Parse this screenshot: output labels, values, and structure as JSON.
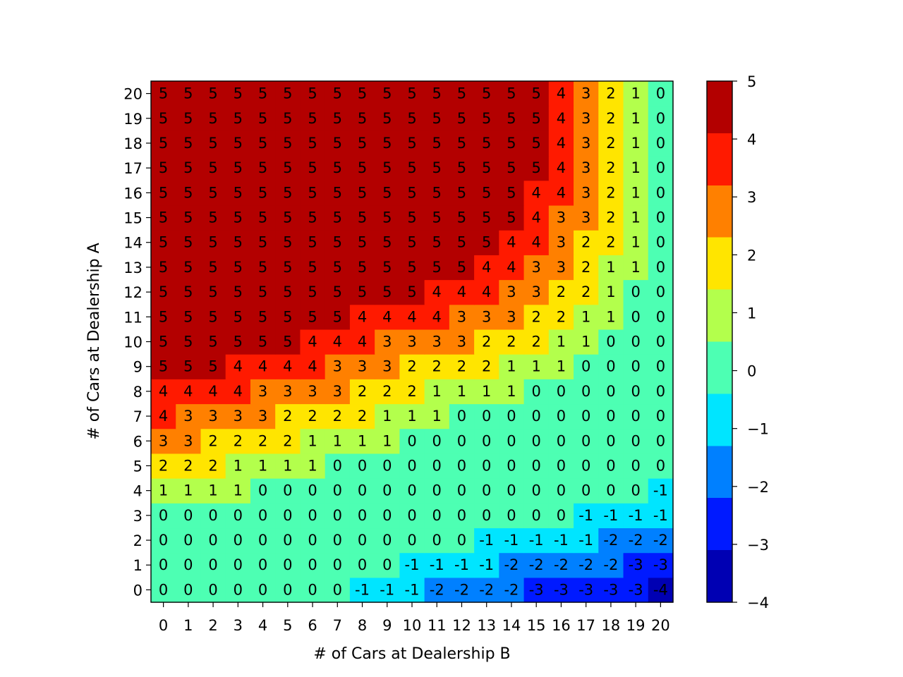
{
  "chart_data": {
    "type": "heatmap",
    "title": "",
    "xlabel": "# of Cars at Dealership B",
    "ylabel": "# of Cars at Dealership A",
    "x_categories": [
      "0",
      "1",
      "2",
      "3",
      "4",
      "5",
      "6",
      "7",
      "8",
      "9",
      "10",
      "11",
      "12",
      "13",
      "14",
      "15",
      "16",
      "17",
      "18",
      "19",
      "20"
    ],
    "y_categories": [
      "0",
      "1",
      "2",
      "3",
      "4",
      "5",
      "6",
      "7",
      "8",
      "9",
      "10",
      "11",
      "12",
      "13",
      "14",
      "15",
      "16",
      "17",
      "18",
      "19",
      "20"
    ],
    "values": [
      [
        0,
        0,
        0,
        0,
        0,
        0,
        0,
        0,
        -1,
        -1,
        -1,
        -2,
        -2,
        -2,
        -2,
        -3,
        -3,
        -3,
        -3,
        -3,
        -4
      ],
      [
        0,
        0,
        0,
        0,
        0,
        0,
        0,
        0,
        0,
        0,
        -1,
        -1,
        -1,
        -1,
        -2,
        -2,
        -2,
        -2,
        -2,
        -3,
        -3
      ],
      [
        0,
        0,
        0,
        0,
        0,
        0,
        0,
        0,
        0,
        0,
        0,
        0,
        0,
        -1,
        -1,
        -1,
        -1,
        -1,
        -2,
        -2,
        -2
      ],
      [
        0,
        0,
        0,
        0,
        0,
        0,
        0,
        0,
        0,
        0,
        0,
        0,
        0,
        0,
        0,
        0,
        0,
        -1,
        -1,
        -1,
        -1
      ],
      [
        1,
        1,
        1,
        1,
        0,
        0,
        0,
        0,
        0,
        0,
        0,
        0,
        0,
        0,
        0,
        0,
        0,
        0,
        0,
        0,
        -1
      ],
      [
        2,
        2,
        2,
        1,
        1,
        1,
        1,
        0,
        0,
        0,
        0,
        0,
        0,
        0,
        0,
        0,
        0,
        0,
        0,
        0,
        0
      ],
      [
        3,
        3,
        2,
        2,
        2,
        2,
        1,
        1,
        1,
        1,
        0,
        0,
        0,
        0,
        0,
        0,
        0,
        0,
        0,
        0,
        0
      ],
      [
        4,
        3,
        3,
        3,
        3,
        2,
        2,
        2,
        2,
        1,
        1,
        1,
        0,
        0,
        0,
        0,
        0,
        0,
        0,
        0,
        0
      ],
      [
        4,
        4,
        4,
        4,
        3,
        3,
        3,
        3,
        2,
        2,
        2,
        1,
        1,
        1,
        1,
        0,
        0,
        0,
        0,
        0,
        0
      ],
      [
        5,
        5,
        5,
        4,
        4,
        4,
        4,
        3,
        3,
        3,
        2,
        2,
        2,
        2,
        1,
        1,
        1,
        0,
        0,
        0,
        0
      ],
      [
        5,
        5,
        5,
        5,
        5,
        5,
        4,
        4,
        4,
        3,
        3,
        3,
        3,
        2,
        2,
        2,
        1,
        1,
        0,
        0,
        0
      ],
      [
        5,
        5,
        5,
        5,
        5,
        5,
        5,
        5,
        4,
        4,
        4,
        4,
        3,
        3,
        3,
        2,
        2,
        1,
        1,
        0,
        0
      ],
      [
        5,
        5,
        5,
        5,
        5,
        5,
        5,
        5,
        5,
        5,
        5,
        4,
        4,
        4,
        3,
        3,
        2,
        2,
        1,
        0,
        0
      ],
      [
        5,
        5,
        5,
        5,
        5,
        5,
        5,
        5,
        5,
        5,
        5,
        5,
        5,
        4,
        4,
        3,
        3,
        2,
        1,
        1,
        0
      ],
      [
        5,
        5,
        5,
        5,
        5,
        5,
        5,
        5,
        5,
        5,
        5,
        5,
        5,
        5,
        4,
        4,
        3,
        2,
        2,
        1,
        0
      ],
      [
        5,
        5,
        5,
        5,
        5,
        5,
        5,
        5,
        5,
        5,
        5,
        5,
        5,
        5,
        5,
        4,
        3,
        3,
        2,
        1,
        0
      ],
      [
        5,
        5,
        5,
        5,
        5,
        5,
        5,
        5,
        5,
        5,
        5,
        5,
        5,
        5,
        5,
        4,
        4,
        3,
        2,
        1,
        0
      ],
      [
        5,
        5,
        5,
        5,
        5,
        5,
        5,
        5,
        5,
        5,
        5,
        5,
        5,
        5,
        5,
        5,
        4,
        3,
        2,
        1,
        0
      ],
      [
        5,
        5,
        5,
        5,
        5,
        5,
        5,
        5,
        5,
        5,
        5,
        5,
        5,
        5,
        5,
        5,
        4,
        3,
        2,
        1,
        0
      ],
      [
        5,
        5,
        5,
        5,
        5,
        5,
        5,
        5,
        5,
        5,
        5,
        5,
        5,
        5,
        5,
        5,
        4,
        3,
        2,
        1,
        0
      ],
      [
        5,
        5,
        5,
        5,
        5,
        5,
        5,
        5,
        5,
        5,
        5,
        5,
        5,
        5,
        5,
        5,
        4,
        3,
        2,
        1,
        0
      ]
    ],
    "vmin": -4,
    "vmax": 5,
    "colormap": "jet",
    "colorbar_ticks": [
      5,
      4,
      3,
      2,
      1,
      0,
      -1,
      -2,
      -3,
      -4
    ],
    "colorbar_tick_labels": [
      "5",
      "4",
      "3",
      "2",
      "1",
      "0",
      "−1",
      "−2",
      "−3",
      "−4"
    ],
    "cell_labels": true
  }
}
